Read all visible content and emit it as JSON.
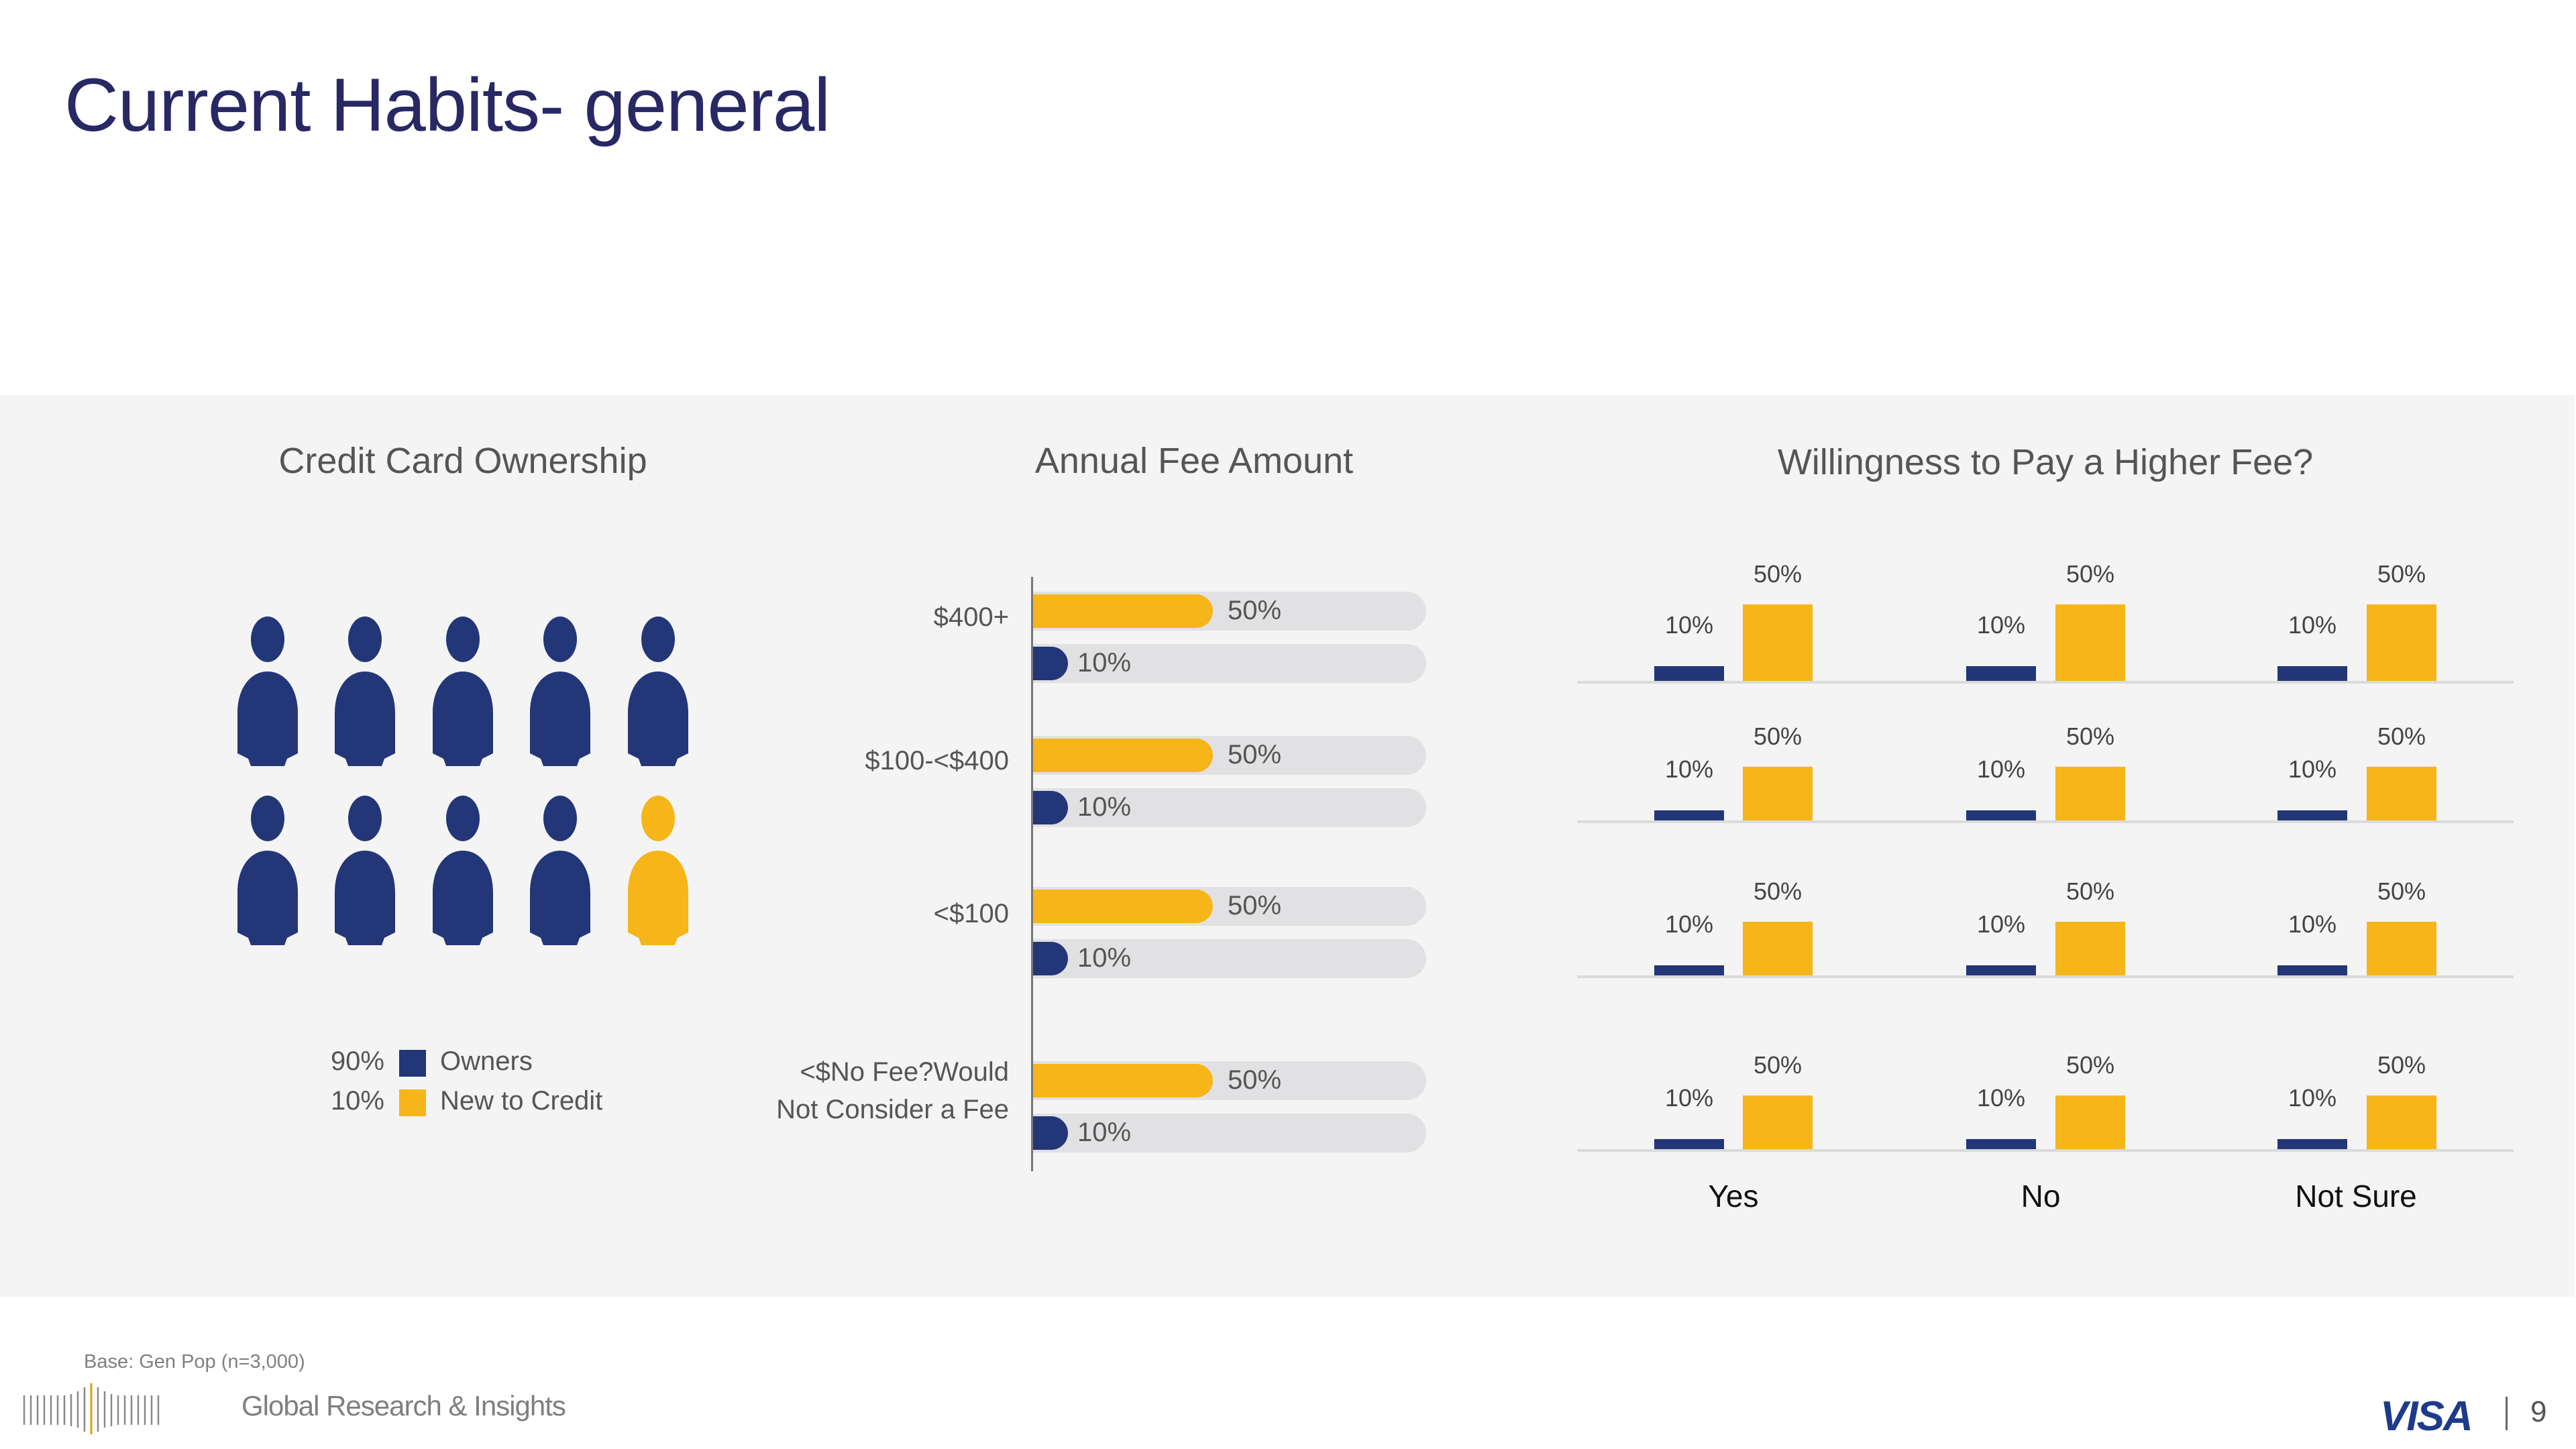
{
  "page": {
    "title": "Current Habits- general",
    "base_note": "Base: Gen Pop (n=3,000)",
    "footer_brand": "Global Research & Insights",
    "logo": "VISA",
    "page_number": "9"
  },
  "colors": {
    "navy": "#233677",
    "gold": "#f6b518",
    "title": "#282864",
    "panel_bg": "#f4f4f4",
    "track": "#e1e1e3"
  },
  "ownership": {
    "title": "Credit Card Ownership",
    "icon": "person-icon",
    "total_icons": 10,
    "owners_icons": 9,
    "legend": [
      {
        "pct": "90%",
        "label": "Owners",
        "color": "#233677"
      },
      {
        "pct": "10%",
        "label": "New to Credit",
        "color": "#f6b518"
      }
    ]
  },
  "annual_fee": {
    "title": "Annual Fee Amount"
  },
  "willingness": {
    "title": "Willingness to Pay a Higher Fee?"
  },
  "chart_data": [
    {
      "type": "pictogram",
      "title": "Credit Card Ownership",
      "categories": [
        "Owners",
        "New to Credit"
      ],
      "values": [
        90,
        10
      ],
      "units": "%"
    },
    {
      "type": "bar",
      "orientation": "horizontal",
      "title": "Annual Fee Amount",
      "categories": [
        "$400+",
        "$100-<$400",
        "<$100",
        "<$No Fee?Would Not Consider a Fee"
      ],
      "series": [
        {
          "name": "New to Credit",
          "color": "#f6b518",
          "values": [
            50,
            50,
            50,
            50
          ],
          "labels": [
            "50%",
            "50%",
            "50%",
            "50%"
          ]
        },
        {
          "name": "Owners",
          "color": "#233677",
          "values": [
            10,
            10,
            10,
            10
          ],
          "labels": [
            "10%",
            "10%",
            "10%",
            "10%"
          ]
        }
      ],
      "xlim": [
        0,
        100
      ]
    },
    {
      "type": "bar",
      "orientation": "vertical",
      "title": "Willingness to Pay a Higher Fee?",
      "categories": [
        "Yes",
        "No",
        "Not Sure"
      ],
      "rows": [
        {
          "series": [
            {
              "name": "Owners",
              "values": [
                10,
                10,
                10
              ],
              "labels": [
                "10%",
                "10%",
                "10%"
              ]
            },
            {
              "name": "New to Credit",
              "values": [
                50,
                50,
                50
              ],
              "labels": [
                "50%",
                "50%",
                "50%"
              ]
            }
          ]
        },
        {
          "series": [
            {
              "name": "Owners",
              "values": [
                10,
                10,
                10
              ],
              "labels": [
                "10%",
                "10%",
                "10%"
              ]
            },
            {
              "name": "New to Credit",
              "values": [
                50,
                50,
                50
              ],
              "labels": [
                "50%",
                "50%",
                "50%"
              ]
            }
          ]
        },
        {
          "series": [
            {
              "name": "Owners",
              "values": [
                10,
                10,
                10
              ],
              "labels": [
                "10%",
                "10%",
                "10%"
              ]
            },
            {
              "name": "New to Credit",
              "values": [
                50,
                50,
                50
              ],
              "labels": [
                "50%",
                "50%",
                "50%"
              ]
            }
          ]
        },
        {
          "series": [
            {
              "name": "Owners",
              "values": [
                10,
                10,
                10
              ],
              "labels": [
                "10%",
                "10%",
                "10%"
              ]
            },
            {
              "name": "New to Credit",
              "values": [
                50,
                50,
                50
              ],
              "labels": [
                "50%",
                "50%",
                "50%"
              ]
            }
          ]
        }
      ]
    }
  ]
}
